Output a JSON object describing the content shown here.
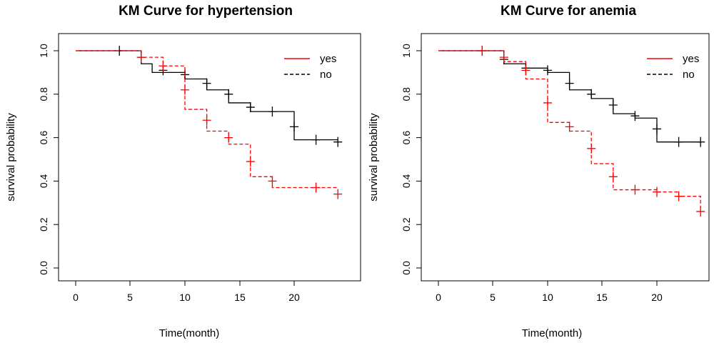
{
  "chart_data": [
    {
      "type": "line",
      "title": "KM Curve for hypertension",
      "xlabel": "Time(month)",
      "ylabel": "survival probability",
      "xlim": [
        0,
        24
      ],
      "ylim": [
        0,
        1
      ],
      "xticks": [
        "0",
        "5",
        "10",
        "15",
        "20"
      ],
      "yticks": [
        "0.0",
        "0.2",
        "0.4",
        "0.6",
        "0.8",
        "1.0"
      ],
      "legend_position": "top-right",
      "series": [
        {
          "name": "yes",
          "color": "#ff0000",
          "legend_line": "solid",
          "line": "dashed",
          "steps": [
            [
              0,
              1.0
            ],
            [
              6,
              0.97
            ],
            [
              8,
              0.93
            ],
            [
              10,
              0.73
            ],
            [
              12,
              0.63
            ],
            [
              14,
              0.57
            ],
            [
              16,
              0.42
            ],
            [
              18,
              0.37
            ],
            [
              24,
              0.37
            ]
          ],
          "censored": [
            [
              6,
              0.97
            ],
            [
              8,
              0.93
            ],
            [
              10,
              0.82
            ],
            [
              12,
              0.68
            ],
            [
              14,
              0.6
            ],
            [
              16,
              0.49
            ],
            [
              18,
              0.4
            ],
            [
              22,
              0.37
            ],
            [
              24,
              0.34
            ]
          ]
        },
        {
          "name": "no",
          "color": "#000000",
          "legend_line": "dashed",
          "line": "solid",
          "steps": [
            [
              0,
              1.0
            ],
            [
              6,
              0.94
            ],
            [
              7,
              0.9
            ],
            [
              10,
              0.87
            ],
            [
              12,
              0.82
            ],
            [
              14,
              0.76
            ],
            [
              16,
              0.72
            ],
            [
              20,
              0.59
            ],
            [
              24,
              0.59
            ]
          ],
          "censored": [
            [
              4,
              1.0
            ],
            [
              6,
              0.97
            ],
            [
              8,
              0.91
            ],
            [
              10,
              0.89
            ],
            [
              12,
              0.85
            ],
            [
              14,
              0.8
            ],
            [
              16,
              0.74
            ],
            [
              18,
              0.72
            ],
            [
              20,
              0.65
            ],
            [
              22,
              0.59
            ],
            [
              24,
              0.58
            ]
          ]
        }
      ]
    },
    {
      "type": "line",
      "title": "KM Curve for anemia",
      "xlabel": "Time(month)",
      "ylabel": "survival probability",
      "xlim": [
        0,
        24
      ],
      "ylim": [
        0,
        1
      ],
      "xticks": [
        "0",
        "5",
        "10",
        "15",
        "20"
      ],
      "yticks": [
        "0.0",
        "0.2",
        "0.4",
        "0.6",
        "0.8",
        "1.0"
      ],
      "legend_position": "top-right",
      "series": [
        {
          "name": "yes",
          "color": "#ff0000",
          "legend_line": "solid",
          "line": "dashed",
          "steps": [
            [
              0,
              1.0
            ],
            [
              6,
              0.95
            ],
            [
              8,
              0.87
            ],
            [
              10,
              0.67
            ],
            [
              12,
              0.63
            ],
            [
              14,
              0.48
            ],
            [
              16,
              0.36
            ],
            [
              20,
              0.35
            ],
            [
              22,
              0.33
            ],
            [
              24,
              0.26
            ]
          ],
          "censored": [
            [
              4,
              1.0
            ],
            [
              6,
              0.97
            ],
            [
              8,
              0.91
            ],
            [
              10,
              0.76
            ],
            [
              12,
              0.65
            ],
            [
              14,
              0.55
            ],
            [
              16,
              0.42
            ],
            [
              18,
              0.36
            ],
            [
              20,
              0.35
            ],
            [
              22,
              0.33
            ],
            [
              24,
              0.26
            ]
          ]
        },
        {
          "name": "no",
          "color": "#000000",
          "legend_line": "dashed",
          "line": "solid",
          "steps": [
            [
              0,
              1.0
            ],
            [
              6,
              0.94
            ],
            [
              8,
              0.92
            ],
            [
              10,
              0.9
            ],
            [
              12,
              0.82
            ],
            [
              14,
              0.78
            ],
            [
              16,
              0.71
            ],
            [
              18,
              0.69
            ],
            [
              20,
              0.58
            ],
            [
              24,
              0.58
            ]
          ],
          "censored": [
            [
              4,
              1.0
            ],
            [
              6,
              0.96
            ],
            [
              8,
              0.92
            ],
            [
              10,
              0.91
            ],
            [
              12,
              0.85
            ],
            [
              14,
              0.8
            ],
            [
              16,
              0.75
            ],
            [
              18,
              0.7
            ],
            [
              20,
              0.64
            ],
            [
              22,
              0.58
            ],
            [
              24,
              0.58
            ]
          ]
        }
      ]
    }
  ]
}
